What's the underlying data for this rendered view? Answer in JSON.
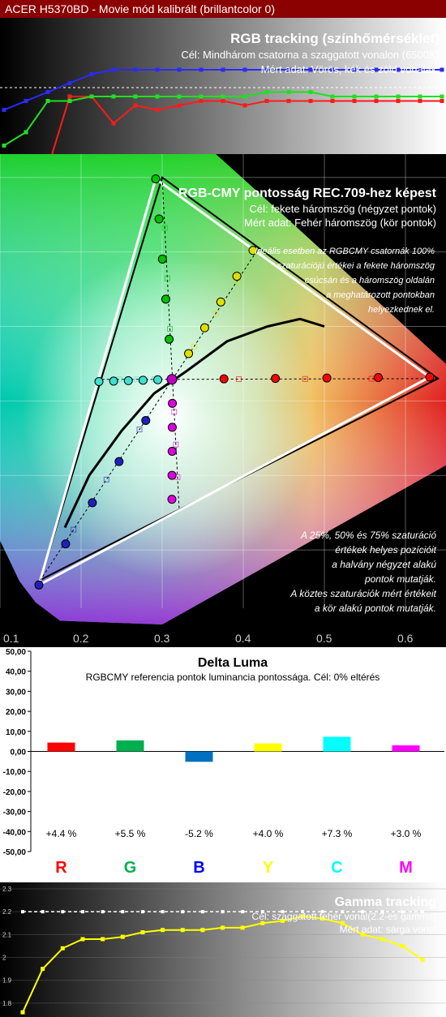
{
  "header": {
    "title": "ACER H5370BD - Movie mód kalibrált (brillantcolor 0)"
  },
  "rgb_tracking": {
    "title": "RGB tracking (színhőmérséklet)",
    "goal": "Cél: Mindhárom csatorna a szaggatott vonalon (6500K)",
    "measured": "Mért adat: Vörös, kék és zöld vonalak.",
    "colors": {
      "red": "#ff1a1a",
      "green": "#20e020",
      "blue": "#2a2aff"
    }
  },
  "cie": {
    "title": "RGB-CMY pontosság REC.709-hez képest",
    "goal": "Cél: fekete háromszög (négyzet pontok)",
    "measured": "Mért adat: Fehér háromszög (kör pontok)",
    "note1": [
      "Ideális esetben az RGBCMY csatornák 100%",
      "szaturációjú értékei a fekete háromszög",
      "csúcsán  és a háromszög oldalán",
      "a meghatározott pontokban",
      "helyezkednek el."
    ],
    "note2": [
      "A 25%, 50% és 75% szaturáció",
      "értékek helyes pozícióit",
      "a halvány négyzet alakú",
      "pontok mutatják.",
      "A köztes szaturációk mért értékeit",
      "a kör alakú pontok mutatják."
    ],
    "x_ticks": [
      "0.1",
      "0.2",
      "0.3",
      "0.4",
      "0.5",
      "0.6"
    ]
  },
  "chart_data": [
    {
      "type": "line",
      "title": "RGB tracking (színhőmérséklet)",
      "x": [
        0,
        5,
        10,
        15,
        20,
        25,
        30,
        35,
        40,
        45,
        50,
        55,
        60,
        65,
        70,
        75,
        80,
        85,
        90,
        95,
        100
      ],
      "series": [
        {
          "name": "Vörös",
          "values": [
            80,
            80,
            82,
            98,
            98,
            92,
            96,
            95,
            96,
            97,
            97,
            96,
            97,
            97,
            97,
            97,
            97,
            97,
            97,
            97,
            97
          ]
        },
        {
          "name": "Zöld",
          "values": [
            87,
            90,
            97,
            97,
            98,
            98,
            98,
            98,
            98,
            98,
            98,
            98,
            99,
            99,
            99,
            98,
            98,
            98,
            98,
            98,
            98
          ]
        },
        {
          "name": "Kék",
          "values": [
            95,
            97,
            99,
            101,
            103,
            104,
            104,
            104,
            104,
            104,
            104,
            104,
            104,
            104,
            104,
            104,
            104,
            104,
            104,
            104,
            104
          ]
        }
      ]
    },
    {
      "type": "scatter",
      "title": "RGB-CMY pontosság REC.709-hez képest",
      "xlim": [
        0.1,
        0.65
      ],
      "ylim": [
        0.0,
        0.8
      ],
      "reference": {
        "R": [
          0.64,
          0.33
        ],
        "G": [
          0.3,
          0.6
        ],
        "B": [
          0.15,
          0.06
        ],
        "C": [
          0.225,
          0.329
        ],
        "M": [
          0.321,
          0.154
        ],
        "Y": [
          0.419,
          0.505
        ],
        "W": [
          0.3127,
          0.329
        ]
      },
      "measured": {
        "R": [
          0.63,
          0.332
        ],
        "G": [
          0.292,
          0.598
        ],
        "B": [
          0.148,
          0.053
        ],
        "C": [
          0.222,
          0.326
        ],
        "M": [
          0.312,
          0.168
        ],
        "Y": [
          0.412,
          0.502
        ],
        "W": [
          0.312,
          0.329
        ]
      }
    },
    {
      "type": "bar",
      "title": "Delta Luma",
      "subtitle": "RGBCMY referencia pontok luminancia pontossága. Cél: 0% eltérés",
      "categories": [
        "R",
        "G",
        "B",
        "Y",
        "C",
        "M"
      ],
      "values": [
        4.4,
        5.5,
        -5.2,
        4.0,
        7.3,
        3.0
      ],
      "value_labels": [
        "+4.4 %",
        "+5.5 %",
        "-5.2 %",
        "+4.0 %",
        "+7.3 %",
        "+3.0 %"
      ],
      "colors": [
        "#ff0000",
        "#00b050",
        "#0070c0",
        "#ffff00",
        "#00ffff",
        "#ff00ff"
      ],
      "label_colors": [
        "#ff0000",
        "#00b050",
        "#0000ff",
        "#ffff00",
        "#00ffff",
        "#ff00ff"
      ],
      "ylim": [
        -50,
        50
      ],
      "y_ticks": [
        "50,00",
        "40,00",
        "30,00",
        "20,00",
        "10,00",
        "0,00",
        "-10,00",
        "-20,00",
        "-30,00",
        "-40,00",
        "-50,00"
      ]
    },
    {
      "type": "line",
      "title": "Gamma tracking",
      "goal": "Cél: szaggatott fehér vonal(2.2-es gamma)",
      "measured": "Mért adat: sárga vonal",
      "y_ticks": [
        "2.3",
        "2.2",
        "2.1",
        "2",
        "1.9",
        "1.8"
      ],
      "ylim": [
        1.75,
        2.3
      ],
      "series": [
        {
          "name": "Mért",
          "values": [
            1.76,
            1.95,
            2.04,
            2.08,
            2.08,
            2.09,
            2.11,
            2.12,
            2.12,
            2.12,
            2.13,
            2.13,
            2.15,
            2.16,
            2.18,
            2.17,
            2.15,
            2.1,
            2.08,
            2.05,
            1.99
          ]
        },
        {
          "name": "Cél",
          "values": [
            2.2,
            2.2,
            2.2,
            2.2,
            2.2,
            2.2,
            2.2,
            2.2,
            2.2,
            2.2,
            2.2,
            2.2,
            2.2,
            2.2,
            2.2,
            2.2,
            2.2,
            2.2,
            2.2,
            2.2,
            2.2
          ]
        }
      ]
    }
  ]
}
